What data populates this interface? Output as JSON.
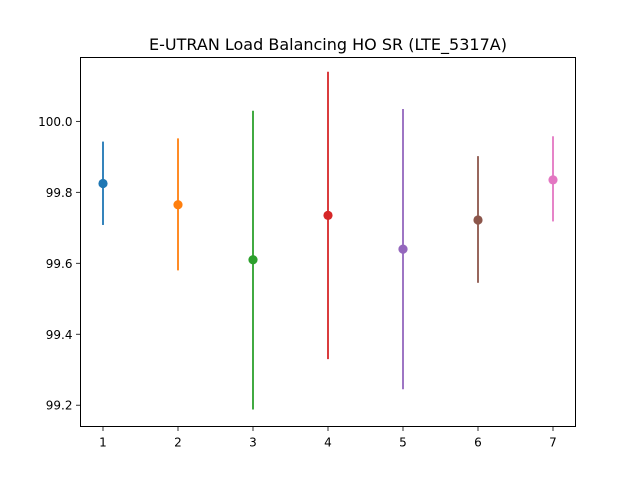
{
  "chart_data": {
    "type": "scatter",
    "title": "E-UTRAN Load Balancing HO SR (LTE_5317A)",
    "xlabel": "",
    "ylabel": "",
    "x_ticks": [
      "1",
      "2",
      "3",
      "4",
      "5",
      "6",
      "7"
    ],
    "y_ticks": [
      "99.2",
      "99.4",
      "99.6",
      "99.8",
      "100.0"
    ],
    "xlim": [
      0.7,
      7.3
    ],
    "ylim": [
      99.14,
      100.18
    ],
    "grid": false,
    "series": [
      {
        "x": 1,
        "y": 99.825,
        "err_low": 99.708,
        "err_high": 99.943,
        "color": "#1f77b4"
      },
      {
        "x": 2,
        "y": 99.765,
        "err_low": 99.58,
        "err_high": 99.952,
        "color": "#ff7f0e"
      },
      {
        "x": 3,
        "y": 99.61,
        "err_low": 99.188,
        "err_high": 100.03,
        "color": "#2ca02c"
      },
      {
        "x": 4,
        "y": 99.735,
        "err_low": 99.33,
        "err_high": 100.14,
        "color": "#d62728"
      },
      {
        "x": 5,
        "y": 99.64,
        "err_low": 99.245,
        "err_high": 100.035,
        "color": "#9467bd"
      },
      {
        "x": 6,
        "y": 99.722,
        "err_low": 99.545,
        "err_high": 99.902,
        "color": "#8c564b"
      },
      {
        "x": 7,
        "y": 99.835,
        "err_low": 99.718,
        "err_high": 99.958,
        "color": "#e377c2"
      }
    ]
  }
}
